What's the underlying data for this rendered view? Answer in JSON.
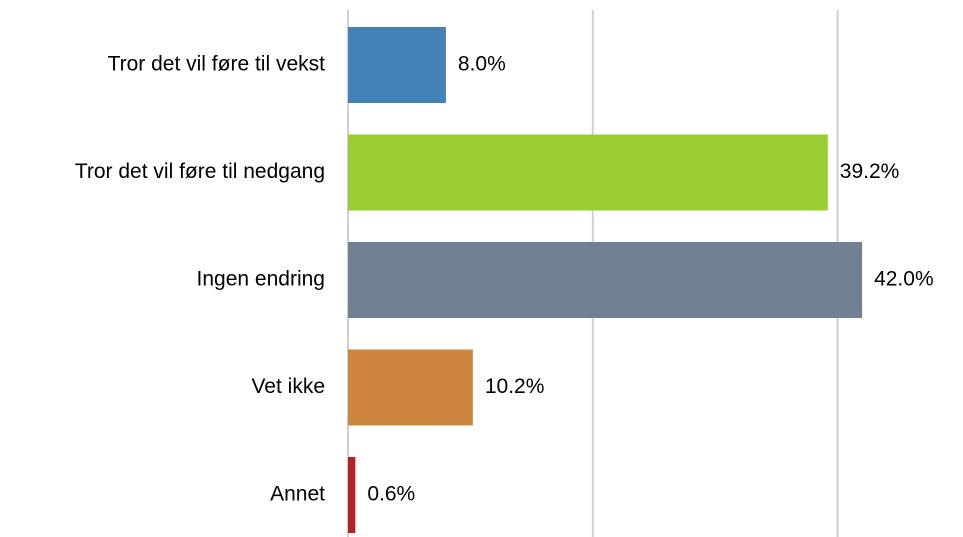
{
  "chart_data": {
    "type": "barh",
    "categories": [
      "Tror det vil føre til vekst",
      "Tror det vil føre til nedgang",
      "Ingen endring",
      "Vet ikke",
      "Annet"
    ],
    "values": [
      8.0,
      39.2,
      42.0,
      10.2,
      0.6
    ],
    "value_labels": [
      "8.0%",
      "39.2%",
      "42.0%",
      "10.2%",
      "0.6%"
    ],
    "colors": [
      "#4581b9",
      "#9acd32",
      "#708090",
      "#cd853f",
      "#b22222"
    ],
    "xlim": [
      0,
      50
    ],
    "xticks": [
      0,
      20,
      40
    ],
    "grid": true
  }
}
